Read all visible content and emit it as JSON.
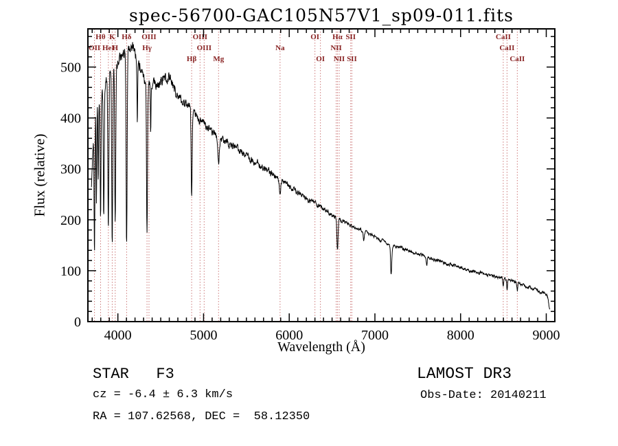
{
  "title": "spec-56700-GAC105N57V1_sp09-011.fits",
  "axes": {
    "x_label": "Wavelength (Å)",
    "y_label": "Flux (relative)",
    "x_ticks": [
      4000,
      5000,
      6000,
      7000,
      8000,
      9000
    ],
    "y_ticks": [
      0,
      100,
      200,
      300,
      400,
      500
    ]
  },
  "footer": {
    "class_line": "STAR   F3",
    "cz_line": "cz = -6.4 ± 6.3 km/s",
    "radec_line": "RA = 107.62568, DEC =  58.12350",
    "survey": "LAMOST DR3",
    "obsdate_line": "Obs-Date: 20140211"
  },
  "colors": {
    "spectrum": "#000000",
    "frame": "#000000",
    "marker_line": "#cc7777",
    "marker_label": "#882222",
    "background": "#ffffff"
  },
  "chart_data": {
    "type": "line",
    "title": "spec-56700-GAC105N57V1_sp09-011.fits",
    "xlabel": "Wavelength (Å)",
    "ylabel": "Flux (relative)",
    "xlim": [
      3650,
      9100
    ],
    "ylim": [
      0,
      575
    ],
    "x_major_tick_step": 1000,
    "x_minor_tick_step": 100,
    "y_major_tick_step": 100,
    "y_minor_tick_step": 20,
    "x_range_plotted": [
      3692,
      9045
    ],
    "x_step": 3,
    "continuum_points": [
      [
        3692,
        260
      ],
      [
        3705,
        330
      ],
      [
        3715,
        370
      ],
      [
        3725,
        395
      ],
      [
        3740,
        420
      ],
      [
        3760,
        432
      ],
      [
        3780,
        440
      ],
      [
        3800,
        450
      ],
      [
        3830,
        458
      ],
      [
        3860,
        468
      ],
      [
        3890,
        480
      ],
      [
        3920,
        490
      ],
      [
        3950,
        500
      ],
      [
        3980,
        506
      ],
      [
        4010,
        512
      ],
      [
        4040,
        518
      ],
      [
        4070,
        524
      ],
      [
        4100,
        530
      ],
      [
        4130,
        538
      ],
      [
        4160,
        542
      ],
      [
        4190,
        538
      ],
      [
        4220,
        520
      ],
      [
        4250,
        500
      ],
      [
        4280,
        488
      ],
      [
        4310,
        478
      ],
      [
        4340,
        472
      ],
      [
        4370,
        468
      ],
      [
        4400,
        468
      ],
      [
        4430,
        464
      ],
      [
        4460,
        465
      ],
      [
        4490,
        470
      ],
      [
        4520,
        476
      ],
      [
        4550,
        480
      ],
      [
        4580,
        482
      ],
      [
        4610,
        478
      ],
      [
        4640,
        462
      ],
      [
        4670,
        450
      ],
      [
        4700,
        443
      ],
      [
        4730,
        436
      ],
      [
        4760,
        430
      ],
      [
        4790,
        427
      ],
      [
        4820,
        424
      ],
      [
        4860,
        420
      ],
      [
        4900,
        407
      ],
      [
        4950,
        398
      ],
      [
        5000,
        391
      ],
      [
        5050,
        381
      ],
      [
        5100,
        373
      ],
      [
        5150,
        364
      ],
      [
        5200,
        358
      ],
      [
        5250,
        353
      ],
      [
        5300,
        348
      ],
      [
        5350,
        344
      ],
      [
        5400,
        338
      ],
      [
        5450,
        332
      ],
      [
        5500,
        326
      ],
      [
        5550,
        320
      ],
      [
        5600,
        314
      ],
      [
        5650,
        308
      ],
      [
        5700,
        302
      ],
      [
        5750,
        296
      ],
      [
        5800,
        290
      ],
      [
        5850,
        284
      ],
      [
        5900,
        277
      ],
      [
        5950,
        271
      ],
      [
        6000,
        265
      ],
      [
        6050,
        259
      ],
      [
        6100,
        253
      ],
      [
        6150,
        247
      ],
      [
        6200,
        242
      ],
      [
        6250,
        237
      ],
      [
        6300,
        232
      ],
      [
        6350,
        227
      ],
      [
        6400,
        221
      ],
      [
        6450,
        215
      ],
      [
        6500,
        209
      ],
      [
        6550,
        204
      ],
      [
        6600,
        199
      ],
      [
        6650,
        195
      ],
      [
        6700,
        191
      ],
      [
        6750,
        187
      ],
      [
        6800,
        183
      ],
      [
        6850,
        179
      ],
      [
        6900,
        175
      ],
      [
        6950,
        171
      ],
      [
        7000,
        167
      ],
      [
        7050,
        162
      ],
      [
        7100,
        157
      ],
      [
        7150,
        153
      ],
      [
        7200,
        150
      ],
      [
        7250,
        147
      ],
      [
        7300,
        145
      ],
      [
        7350,
        142
      ],
      [
        7400,
        139
      ],
      [
        7450,
        136
      ],
      [
        7500,
        133
      ],
      [
        7550,
        130
      ],
      [
        7600,
        127
      ],
      [
        7650,
        125
      ],
      [
        7700,
        122
      ],
      [
        7750,
        119
      ],
      [
        7800,
        116
      ],
      [
        7850,
        113
      ],
      [
        7900,
        111
      ],
      [
        7950,
        108
      ],
      [
        8000,
        106
      ],
      [
        8100,
        101
      ],
      [
        8200,
        97
      ],
      [
        8300,
        93
      ],
      [
        8400,
        89
      ],
      [
        8500,
        85
      ],
      [
        8600,
        80
      ],
      [
        8700,
        74
      ],
      [
        8800,
        68
      ],
      [
        8900,
        61
      ],
      [
        8950,
        58
      ],
      [
        9000,
        54
      ],
      [
        9015,
        48
      ],
      [
        9030,
        34
      ],
      [
        9045,
        22
      ]
    ],
    "absorption_lines": [
      {
        "center": 3727,
        "depth": 270,
        "sigma": 5
      },
      {
        "center": 3750,
        "depth": 190,
        "sigma": 4
      },
      {
        "center": 3771,
        "depth": 170,
        "sigma": 4
      },
      {
        "center": 3798,
        "depth": 235,
        "sigma": 5
      },
      {
        "center": 3835,
        "depth": 260,
        "sigma": 5
      },
      {
        "center": 3889,
        "depth": 290,
        "sigma": 6
      },
      {
        "center": 3934,
        "depth": 345,
        "sigma": 6
      },
      {
        "center": 3969,
        "depth": 310,
        "sigma": 6
      },
      {
        "center": 4102,
        "depth": 375,
        "sigma": 6
      },
      {
        "center": 4227,
        "depth": 130,
        "sigma": 4
      },
      {
        "center": 4340,
        "depth": 300,
        "sigma": 6
      },
      {
        "center": 4383,
        "depth": 100,
        "sigma": 3.5
      },
      {
        "center": 4861,
        "depth": 165,
        "sigma": 6
      },
      {
        "center": 5175,
        "depth": 45,
        "sigma": 9
      },
      {
        "center": 5893,
        "depth": 32,
        "sigma": 7
      },
      {
        "center": 6563,
        "depth": 62,
        "sigma": 7
      },
      {
        "center": 6870,
        "depth": 18,
        "sigma": 6
      },
      {
        "center": 7190,
        "depth": 58,
        "sigma": 7
      },
      {
        "center": 7605,
        "depth": 16,
        "sigma": 6
      },
      {
        "center": 8498,
        "depth": 16,
        "sigma": 5
      },
      {
        "center": 8542,
        "depth": 20,
        "sigma": 5
      },
      {
        "center": 8662,
        "depth": 16,
        "sigma": 5
      }
    ],
    "noise": {
      "seed": 20140211,
      "amp_blue": 9,
      "amp_red": 2.5,
      "correlation": 0.55
    },
    "spectral_markers": [
      {
        "label": "OII",
        "wavelength": 3727,
        "row": 2
      },
      {
        "label": "Hθ",
        "wavelength": 3798,
        "row": 1
      },
      {
        "label": "HeI",
        "wavelength": 3889,
        "row": 2
      },
      {
        "label": "K",
        "wavelength": 3934,
        "row": 1
      },
      {
        "label": "H",
        "wavelength": 3969,
        "row": 2
      },
      {
        "label": "Hδ",
        "wavelength": 4102,
        "row": 1
      },
      {
        "label": "Hγ",
        "wavelength": 4340,
        "row": 2
      },
      {
        "label": "OIII",
        "wavelength": 4363,
        "row": 1
      },
      {
        "label": "Hβ",
        "wavelength": 4861,
        "row": 3
      },
      {
        "label": "OIII",
        "wavelength": 4959,
        "row": 1
      },
      {
        "label": "OIII",
        "wavelength": 5007,
        "row": 2
      },
      {
        "label": "Mg",
        "wavelength": 5175,
        "row": 3
      },
      {
        "label": "Na",
        "wavelength": 5893,
        "row": 2
      },
      {
        "label": "OI",
        "wavelength": 6300,
        "row": 1
      },
      {
        "label": "OI",
        "wavelength": 6364,
        "row": 3
      },
      {
        "label": "NII",
        "wavelength": 6548,
        "row": 2
      },
      {
        "label": "Hα",
        "wavelength": 6563,
        "row": 1
      },
      {
        "label": "NII",
        "wavelength": 6583,
        "row": 3
      },
      {
        "label": "SII",
        "wavelength": 6717,
        "row": 1
      },
      {
        "label": "SII",
        "wavelength": 6731,
        "row": 3
      },
      {
        "label": "CaII",
        "wavelength": 8498,
        "row": 1
      },
      {
        "label": "CaII",
        "wavelength": 8542,
        "row": 2
      },
      {
        "label": "CaII",
        "wavelength": 8662,
        "row": 3
      }
    ]
  }
}
